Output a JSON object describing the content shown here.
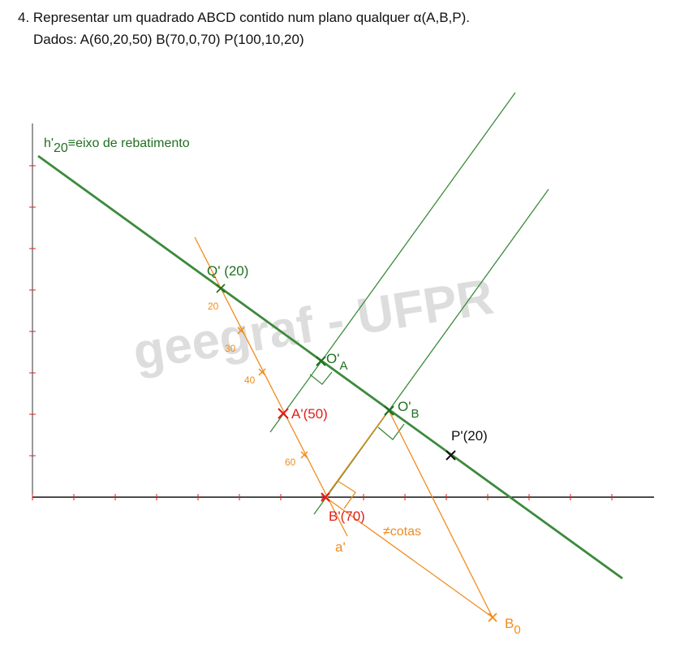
{
  "problem": {
    "title": "4. Representar um quadrado ABCD contido num plano qualquer α(A,B,P).",
    "data_line": "Dados: A(60,20,50)  B(70,0,70)  P(100,10,20)"
  },
  "watermark": "geegraf - UFPR",
  "labels": {
    "h20_main": "h'",
    "h20_sub": "20",
    "h20_rest": "≡eixo de rebatimento",
    "q": "Q' (20)",
    "oa_main": "O'",
    "oa_sub": "A",
    "ob_main": "O'",
    "ob_sub": "B",
    "p": "P'(20)",
    "a": "A'(50)",
    "b": "B'(70)",
    "cotas": "≠cotas",
    "a_prime": "a'",
    "b0_main": "B",
    "b0_sub": "0"
  },
  "graduation": [
    "20",
    "30",
    "40",
    "60"
  ],
  "colors": {
    "green": "#3c8a3c",
    "dark_green": "#1f6f1f",
    "orange": "#f08c1e",
    "red": "#e0201a",
    "black": "#111111",
    "axis_tick": "#e0201a"
  }
}
